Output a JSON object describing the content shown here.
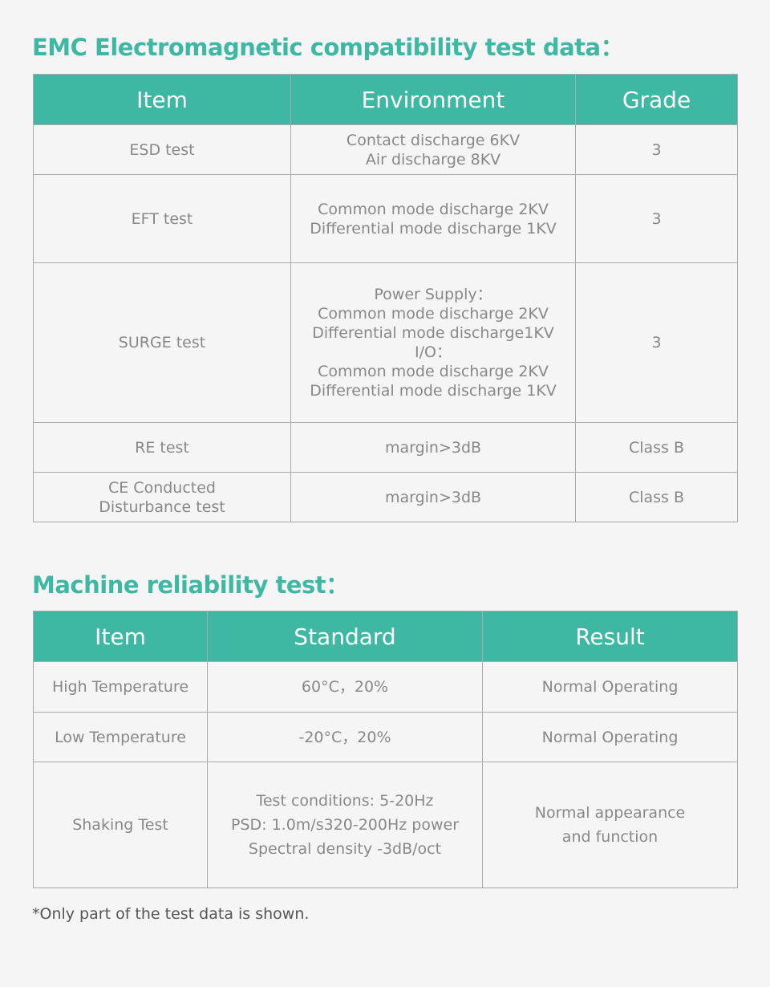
{
  "emc": {
    "title": "EMC Electromagnetic compatibility test data：",
    "headers": [
      "Item",
      "Environment",
      "Grade"
    ],
    "rows": [
      {
        "item": [
          "ESD  test"
        ],
        "env": [
          "Contact discharge 6KV",
          "Air discharge 8KV"
        ],
        "grade": "3"
      },
      {
        "item": [
          "EFT  test"
        ],
        "env": [
          "Common mode discharge 2KV",
          "Differential mode discharge 1KV"
        ],
        "grade": "3"
      },
      {
        "item": [
          "SURGE test"
        ],
        "env": [
          "Power Supply：",
          "Common mode discharge 2KV",
          "Differential mode discharge1KV",
          "I/O：",
          "Common mode discharge 2KV",
          "Differential mode discharge 1KV"
        ],
        "grade": "3"
      },
      {
        "item": [
          "RE test"
        ],
        "env": [
          "margin>3dB"
        ],
        "grade": "Class B"
      },
      {
        "item": [
          "CE Conducted",
          "Disturbance test"
        ],
        "env": [
          "margin>3dB"
        ],
        "grade": "Class B"
      }
    ]
  },
  "reliability": {
    "title": "Machine reliability test：",
    "headers": [
      "Item",
      "Standard",
      "Result"
    ],
    "rows": [
      {
        "item": [
          "High Temperature"
        ],
        "std": [
          "60°C，20%"
        ],
        "result": [
          "Normal Operating"
        ]
      },
      {
        "item": [
          "Low Temperature"
        ],
        "std": [
          "-20°C，20%"
        ],
        "result": [
          "Normal Operating"
        ]
      },
      {
        "item": [
          "Shaking Test"
        ],
        "std": [
          "Test conditions: 5-20Hz",
          "PSD: 1.0m/s320-200Hz power",
          "Spectral density -3dB/oct"
        ],
        "result": [
          "Normal appearance",
          "and function"
        ]
      }
    ]
  },
  "footnote": "*Only part of the test data is shown.",
  "colors": {
    "accent": "#3fb8a3",
    "text": "#888888",
    "background": "#f5f5f5"
  }
}
